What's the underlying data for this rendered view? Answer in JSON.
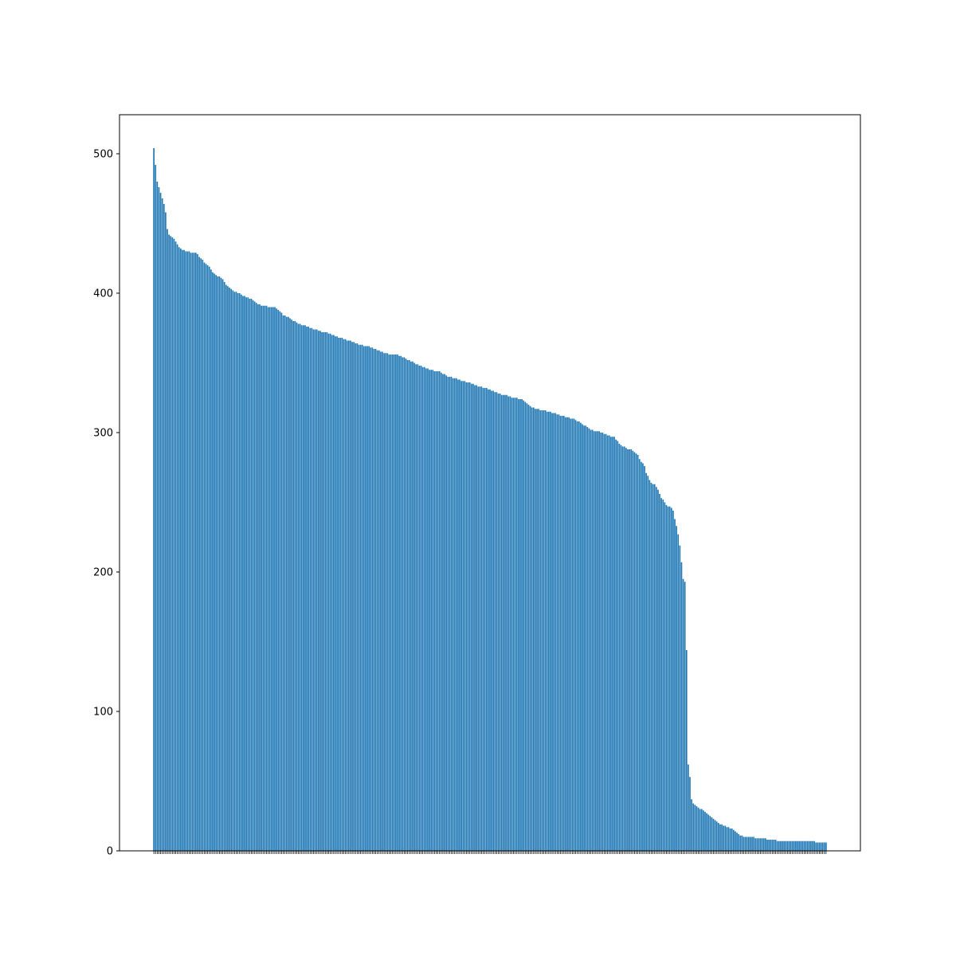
{
  "chart_data": {
    "type": "bar",
    "title": "",
    "xlabel": "",
    "ylabel": "",
    "ylim": [
      0,
      528
    ],
    "yticks": [
      0,
      100,
      200,
      300,
      400,
      500
    ],
    "grid": false,
    "legend": "none",
    "bar_color": "#1f77b4",
    "categories_note": "x tick labels are dense rotated text that is illegible in the screenshot",
    "values": [
      504,
      492,
      480,
      476,
      472,
      468,
      464,
      458,
      446,
      442,
      441,
      440,
      439,
      437,
      435,
      433,
      432,
      431,
      431,
      430,
      430,
      430,
      429,
      429,
      429,
      429,
      428,
      426,
      425,
      424,
      422,
      421,
      420,
      419,
      417,
      415,
      414,
      413,
      412,
      412,
      411,
      410,
      408,
      406,
      405,
      404,
      403,
      402,
      401,
      401,
      400,
      400,
      399,
      398,
      398,
      397,
      397,
      396,
      396,
      395,
      394,
      393,
      392,
      392,
      391,
      391,
      391,
      391,
      390,
      390,
      390,
      390,
      390,
      389,
      388,
      387,
      386,
      384,
      384,
      383,
      383,
      382,
      381,
      380,
      380,
      379,
      378,
      378,
      377,
      377,
      377,
      376,
      376,
      375,
      375,
      374,
      374,
      374,
      373,
      373,
      372,
      372,
      372,
      372,
      371,
      371,
      370,
      370,
      369,
      369,
      368,
      368,
      368,
      367,
      367,
      366,
      366,
      366,
      365,
      365,
      364,
      364,
      363,
      363,
      363,
      362,
      362,
      362,
      362,
      361,
      361,
      360,
      360,
      359,
      359,
      358,
      358,
      357,
      357,
      357,
      356,
      356,
      356,
      356,
      356,
      356,
      355,
      355,
      354,
      354,
      353,
      352,
      352,
      351,
      351,
      350,
      349,
      349,
      348,
      348,
      347,
      347,
      346,
      346,
      345,
      345,
      345,
      344,
      344,
      344,
      344,
      343,
      342,
      342,
      341,
      340,
      340,
      340,
      339,
      339,
      339,
      338,
      338,
      337,
      337,
      337,
      336,
      336,
      336,
      335,
      335,
      334,
      334,
      333,
      333,
      333,
      332,
      332,
      332,
      331,
      331,
      330,
      330,
      329,
      329,
      328,
      328,
      327,
      327,
      327,
      327,
      326,
      326,
      325,
      325,
      325,
      325,
      324,
      324,
      324,
      323,
      322,
      321,
      320,
      319,
      318,
      318,
      317,
      317,
      317,
      316,
      316,
      316,
      316,
      315,
      315,
      315,
      314,
      314,
      314,
      313,
      313,
      312,
      312,
      312,
      311,
      311,
      311,
      310,
      310,
      310,
      309,
      308,
      308,
      307,
      306,
      305,
      305,
      304,
      303,
      302,
      302,
      301,
      301,
      301,
      301,
      300,
      300,
      299,
      299,
      298,
      298,
      297,
      297,
      297,
      295,
      294,
      292,
      291,
      290,
      290,
      289,
      288,
      288,
      288,
      287,
      286,
      285,
      284,
      281,
      279,
      278,
      276,
      271,
      269,
      266,
      264,
      263,
      263,
      261,
      259,
      256,
      253,
      252,
      250,
      248,
      247,
      247,
      246,
      244,
      238,
      233,
      227,
      219,
      207,
      195,
      193,
      144,
      62,
      53,
      37,
      34,
      33,
      32,
      31,
      30,
      30,
      29,
      28,
      27,
      26,
      25,
      24,
      23,
      22,
      21,
      20,
      19,
      19,
      18,
      18,
      17,
      17,
      16,
      16,
      15,
      14,
      13,
      12,
      11,
      11,
      10,
      10,
      10,
      10,
      10,
      10,
      10,
      9,
      9,
      9,
      9,
      9,
      9,
      9,
      8,
      8,
      8,
      8,
      8,
      8,
      7,
      7,
      7,
      7,
      7,
      7,
      7,
      7,
      7,
      7,
      7,
      7,
      7,
      7,
      7,
      7,
      7,
      7,
      7,
      7,
      7,
      7,
      7,
      6,
      6,
      6,
      6,
      6,
      6,
      6
    ]
  }
}
